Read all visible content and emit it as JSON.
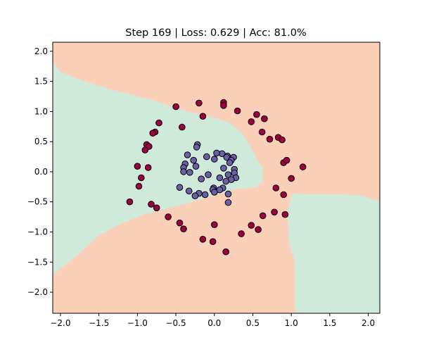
{
  "chart_data": {
    "type": "scatter",
    "title": "Step 169 | Loss: 0.629 | Acc: 81.0%",
    "xlabel": "",
    "ylabel": "",
    "xlim": [
      -2.1,
      2.15
    ],
    "ylim": [
      -2.35,
      2.15
    ],
    "grid": false,
    "legend": "none",
    "xticks": [
      -2.0,
      -1.5,
      -1.0,
      -0.5,
      0.0,
      0.5,
      1.0,
      1.5,
      2.0
    ],
    "xtick_labels": [
      "−2.0",
      "−1.5",
      "−1.0",
      "−0.5",
      "0.0",
      "0.5",
      "1.0",
      "1.5",
      "2.0"
    ],
    "yticks": [
      -2.0,
      -1.5,
      -1.0,
      -0.5,
      0.0,
      0.5,
      1.0,
      1.5,
      2.0
    ],
    "ytick_labels": [
      "−2.0",
      "−1.5",
      "−1.0",
      "−0.5",
      "0.0",
      "0.5",
      "1.0",
      "1.5",
      "2.0"
    ],
    "decision_regions": {
      "colors": {
        "outer_class": "#fbd0b9",
        "inner_class": "#cfeadb"
      },
      "inner_region_polygons": [
        [
          [
            -2.1,
            1.8
          ],
          [
            -2.0,
            1.65
          ],
          [
            -1.7,
            1.5
          ],
          [
            -1.4,
            1.38
          ],
          [
            -1.1,
            1.28
          ],
          [
            -0.8,
            1.18
          ],
          [
            -0.5,
            1.05
          ],
          [
            -0.3,
            0.98
          ],
          [
            -0.1,
            0.92
          ],
          [
            0.05,
            0.87
          ],
          [
            0.2,
            0.8
          ],
          [
            0.35,
            0.65
          ],
          [
            0.45,
            0.45
          ],
          [
            0.55,
            0.2
          ],
          [
            0.63,
            0.05
          ],
          [
            0.62,
            -0.15
          ],
          [
            0.55,
            -0.25
          ],
          [
            0.3,
            -0.28
          ],
          [
            0.1,
            -0.35
          ],
          [
            -0.3,
            -0.5
          ],
          [
            -0.6,
            -0.6
          ],
          [
            -0.9,
            -0.7
          ],
          [
            -1.2,
            -0.85
          ],
          [
            -1.5,
            -1.05
          ],
          [
            -1.8,
            -1.4
          ],
          [
            -2.1,
            -1.7
          ]
        ],
        [
          [
            1.02,
            -0.37
          ],
          [
            1.3,
            -0.38
          ],
          [
            1.6,
            -0.38
          ],
          [
            1.9,
            -0.4
          ],
          [
            2.15,
            -0.5
          ],
          [
            2.15,
            -2.35
          ],
          [
            1.05,
            -2.35
          ],
          [
            1.05,
            -1.5
          ],
          [
            0.98,
            -1.2
          ],
          [
            0.96,
            -0.9
          ],
          [
            0.95,
            -0.65
          ]
        ]
      ]
    },
    "series": [
      {
        "color": "#9e0142",
        "points": [
          [
            0.12,
            1.15
          ],
          [
            -0.2,
            1.14
          ],
          [
            0.12,
            1.1
          ],
          [
            -0.5,
            1.08
          ],
          [
            -0.15,
            0.92
          ],
          [
            0.3,
            1.01
          ],
          [
            0.55,
            0.95
          ],
          [
            0.65,
            0.88
          ],
          [
            0.48,
            0.83
          ],
          [
            -0.72,
            0.81
          ],
          [
            -0.42,
            0.74
          ],
          [
            -0.77,
            0.66
          ],
          [
            -0.8,
            0.64
          ],
          [
            0.62,
            0.66
          ],
          [
            0.83,
            0.57
          ],
          [
            0.88,
            0.53
          ],
          [
            0.72,
            0.54
          ],
          [
            -0.88,
            0.45
          ],
          [
            -0.85,
            0.42
          ],
          [
            -0.9,
            0.36
          ],
          [
            0.9,
            0.15
          ],
          [
            0.94,
            0.19
          ],
          [
            -1.0,
            0.09
          ],
          [
            -0.86,
            0.07
          ],
          [
            1.15,
            0.08
          ],
          [
            -0.95,
            -0.1
          ],
          [
            1.0,
            -0.11
          ],
          [
            -0.98,
            -0.24
          ],
          [
            0.8,
            -0.27
          ],
          [
            0.9,
            -0.38
          ],
          [
            -1.1,
            -0.5
          ],
          [
            -0.82,
            -0.54
          ],
          [
            -0.75,
            -0.6
          ],
          [
            -0.6,
            -0.75
          ],
          [
            0.78,
            -0.67
          ],
          [
            0.92,
            -0.71
          ],
          [
            0.63,
            -0.73
          ],
          [
            -0.45,
            -0.85
          ],
          [
            0.48,
            -0.89
          ],
          [
            0.0,
            -0.88
          ],
          [
            -0.4,
            -0.95
          ],
          [
            0.57,
            -0.96
          ],
          [
            0.35,
            -1.03
          ],
          [
            -0.15,
            -1.12
          ],
          [
            -0.02,
            -1.16
          ],
          [
            0.15,
            -1.33
          ]
        ]
      },
      {
        "color": "#6c5fa8",
        "points": [
          [
            -0.22,
            0.45
          ],
          [
            -0.23,
            0.41
          ],
          [
            0.1,
            0.3
          ],
          [
            0.17,
            0.26
          ],
          [
            -0.35,
            0.28
          ],
          [
            0.03,
            0.31
          ],
          [
            -0.1,
            0.25
          ],
          [
            0.16,
            0.24
          ],
          [
            0.25,
            0.24
          ],
          [
            0.0,
            0.21
          ],
          [
            0.22,
            0.19
          ],
          [
            -0.27,
            0.19
          ],
          [
            -0.38,
            0.13
          ],
          [
            0.2,
            0.15
          ],
          [
            -0.24,
            0.09
          ],
          [
            -0.4,
            0.07
          ],
          [
            0.12,
            0.06
          ],
          [
            0.26,
            0.04
          ],
          [
            0.26,
            -0.02
          ],
          [
            -0.32,
            -0.01
          ],
          [
            -0.4,
            0.0
          ],
          [
            -0.08,
            -0.05
          ],
          [
            0.18,
            -0.05
          ],
          [
            0.07,
            -0.1
          ],
          [
            0.28,
            -0.1
          ],
          [
            -0.17,
            -0.12
          ],
          [
            0.22,
            -0.13
          ],
          [
            0.15,
            -0.16
          ],
          [
            -0.45,
            -0.26
          ],
          [
            0.11,
            -0.27
          ],
          [
            -0.01,
            -0.27
          ],
          [
            -0.02,
            -0.3
          ],
          [
            0.0,
            -0.34
          ],
          [
            -0.33,
            -0.32
          ],
          [
            -0.2,
            -0.36
          ],
          [
            -0.12,
            -0.38
          ],
          [
            0.07,
            -0.3
          ],
          [
            0.18,
            -0.37
          ],
          [
            -0.25,
            -0.4
          ],
          [
            0.18,
            -0.51
          ]
        ]
      }
    ]
  }
}
